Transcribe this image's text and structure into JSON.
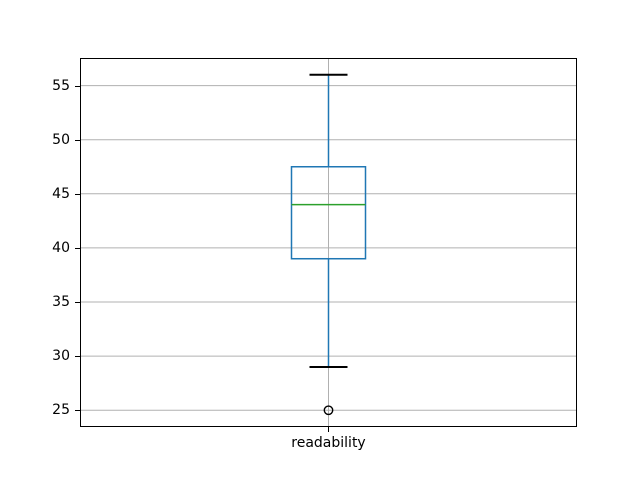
{
  "chart_data": {
    "type": "box",
    "title": "",
    "xlabel": "",
    "ylabel": "",
    "categories": [
      "readability"
    ],
    "series": [
      {
        "name": "readability",
        "whisker_low": 29,
        "q1": 39,
        "median": 44,
        "q3": 47.5,
        "whisker_high": 56,
        "outliers": [
          25
        ]
      }
    ],
    "yticks": [
      25,
      30,
      35,
      40,
      45,
      50,
      55
    ],
    "ylim": [
      23.45,
      57.55
    ],
    "grid": true,
    "legend": false,
    "colors": {
      "box": "#1f77b4",
      "whisker": "#1f77b4",
      "median": "#2ca02c",
      "cap": "#000000",
      "flier_edge": "#000000",
      "grid": "#b0b0b0",
      "spine": "#000000",
      "background": "#ffffff"
    }
  }
}
